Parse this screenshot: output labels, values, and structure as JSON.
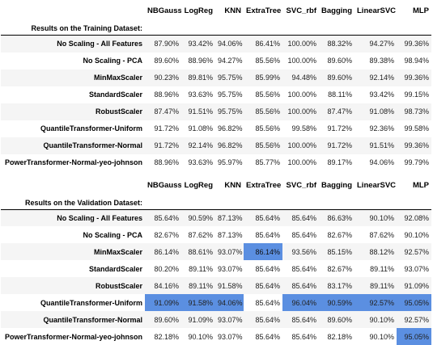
{
  "columns": [
    "NBGauss",
    "LogReg",
    "KNN",
    "ExtraTree",
    "SVC_rbf",
    "Bagging",
    "LinearSVC",
    "MLP"
  ],
  "highlight_color": "#5b8fe1",
  "training": {
    "caption": "Results on the Training Dataset:",
    "rows": [
      {
        "label": "No Scaling - All Features",
        "values": [
          "87.90%",
          "93.42%",
          "94.06%",
          "86.41%",
          "100.00%",
          "88.32%",
          "94.27%",
          "99.36%"
        ]
      },
      {
        "label": "No Scaling - PCA",
        "values": [
          "89.60%",
          "88.96%",
          "94.27%",
          "85.56%",
          "100.00%",
          "89.60%",
          "89.38%",
          "98.94%"
        ]
      },
      {
        "label": "MinMaxScaler",
        "values": [
          "90.23%",
          "89.81%",
          "95.75%",
          "85.99%",
          "94.48%",
          "89.60%",
          "92.14%",
          "99.36%"
        ]
      },
      {
        "label": "StandardScaler",
        "values": [
          "88.96%",
          "93.63%",
          "95.75%",
          "85.56%",
          "100.00%",
          "88.11%",
          "93.42%",
          "99.15%"
        ]
      },
      {
        "label": "RobustScaler",
        "values": [
          "87.47%",
          "91.51%",
          "95.75%",
          "85.56%",
          "100.00%",
          "87.47%",
          "91.08%",
          "98.73%"
        ]
      },
      {
        "label": "QuantileTransformer-Uniform",
        "values": [
          "91.72%",
          "91.08%",
          "96.82%",
          "85.56%",
          "99.58%",
          "91.72%",
          "92.36%",
          "99.58%"
        ]
      },
      {
        "label": "QuantileTransformer-Normal",
        "values": [
          "91.72%",
          "92.14%",
          "96.82%",
          "85.56%",
          "100.00%",
          "91.72%",
          "91.51%",
          "99.36%"
        ]
      },
      {
        "label": "PowerTransformer-Normal-yeo-johnson",
        "values": [
          "88.96%",
          "93.63%",
          "95.97%",
          "85.77%",
          "100.00%",
          "89.17%",
          "94.06%",
          "99.79%"
        ]
      }
    ]
  },
  "validation": {
    "caption": "Results on the Validation Dataset:",
    "rows": [
      {
        "label": "No Scaling - All Features",
        "values": [
          "85.64%",
          "90.59%",
          "87.13%",
          "85.64%",
          "85.64%",
          "86.63%",
          "90.10%",
          "92.08%"
        ],
        "highlight": []
      },
      {
        "label": "No Scaling - PCA",
        "values": [
          "82.67%",
          "87.62%",
          "87.13%",
          "85.64%",
          "85.64%",
          "82.67%",
          "87.62%",
          "90.10%"
        ],
        "highlight": []
      },
      {
        "label": "MinMaxScaler",
        "values": [
          "86.14%",
          "88.61%",
          "93.07%",
          "86.14%",
          "93.56%",
          "85.15%",
          "88.12%",
          "92.57%"
        ],
        "highlight": [
          3
        ]
      },
      {
        "label": "StandardScaler",
        "values": [
          "80.20%",
          "89.11%",
          "93.07%",
          "85.64%",
          "85.64%",
          "82.67%",
          "89.11%",
          "93.07%"
        ],
        "highlight": []
      },
      {
        "label": "RobustScaler",
        "values": [
          "84.16%",
          "89.11%",
          "91.58%",
          "85.64%",
          "85.64%",
          "83.17%",
          "89.11%",
          "91.09%"
        ],
        "highlight": []
      },
      {
        "label": "QuantileTransformer-Uniform",
        "values": [
          "91.09%",
          "91.58%",
          "94.06%",
          "85.64%",
          "96.04%",
          "90.59%",
          "92.57%",
          "95.05%"
        ],
        "highlight": [
          0,
          1,
          2,
          4,
          5,
          6,
          7
        ]
      },
      {
        "label": "QuantileTransformer-Normal",
        "values": [
          "89.60%",
          "91.09%",
          "93.07%",
          "85.64%",
          "85.64%",
          "89.60%",
          "90.10%",
          "92.57%"
        ],
        "highlight": []
      },
      {
        "label": "PowerTransformer-Normal-yeo-johnson",
        "values": [
          "82.18%",
          "90.10%",
          "93.07%",
          "85.64%",
          "85.64%",
          "82.18%",
          "90.10%",
          "95.05%"
        ],
        "highlight": [
          7
        ]
      }
    ]
  }
}
